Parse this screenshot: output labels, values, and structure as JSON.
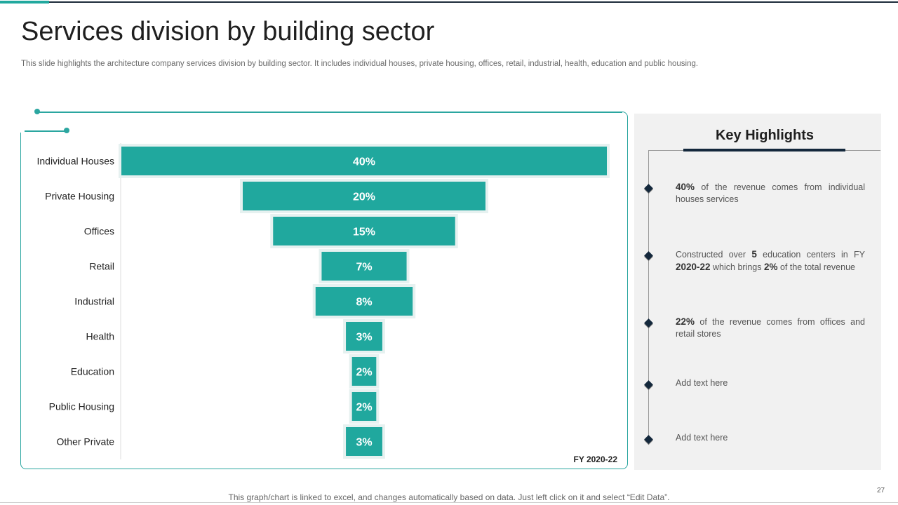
{
  "slide": {
    "title": "Services division by building sector",
    "subtitle": "This slide highlights the architecture company services division by building sector. It includes individual houses, private housing, offices, retail, industrial, health, education and public housing.",
    "footer_note": "This graph/chart is linked to excel,  and changes automatically based on data. Just left click on it and select “Edit Data”.",
    "page_number": "27"
  },
  "colors": {
    "accent": "#20a89e",
    "navy": "#14283c",
    "panel_bg": "#f1f1f1"
  },
  "chart_data": {
    "type": "bar",
    "orientation": "horizontal-funnel",
    "categories": [
      "Individual Houses",
      "Private Housing",
      "Offices",
      "Retail",
      "Industrial",
      "Health",
      "Education",
      "Public Housing",
      "Other Private"
    ],
    "values": [
      40,
      20,
      15,
      7,
      8,
      3,
      2,
      2,
      3
    ],
    "value_labels": [
      "40%",
      "20%",
      "15%",
      "7%",
      "8%",
      "3%",
      "2%",
      "2%",
      "3%"
    ],
    "unit": "%",
    "period_label": "FY 2020-22",
    "xlabel": "",
    "ylabel": ""
  },
  "highlights": {
    "heading": "Key Highlights",
    "items": [
      {
        "b1": "40%",
        "t1": " of the revenue  comes from  individual houses services",
        "b2": "",
        "t2": "",
        "b3": "",
        "t3": ""
      },
      {
        "b1": "",
        "t1": "Constructed over  ",
        "b2": "5",
        "t2": " education centers in FY ",
        "b3": "2020-22",
        "t3": " which brings ",
        "b4": "2%",
        "t4": " of the total revenue"
      },
      {
        "b1": "22%",
        "t1": " of the revenue  comes from  offices and retail stores",
        "b2": "",
        "t2": "",
        "b3": "",
        "t3": ""
      },
      {
        "b1": "",
        "t1": "Add text here",
        "b2": "",
        "t2": "",
        "b3": "",
        "t3": ""
      },
      {
        "b1": "",
        "t1": "Add text here",
        "b2": "",
        "t2": "",
        "b3": "",
        "t3": ""
      }
    ]
  }
}
